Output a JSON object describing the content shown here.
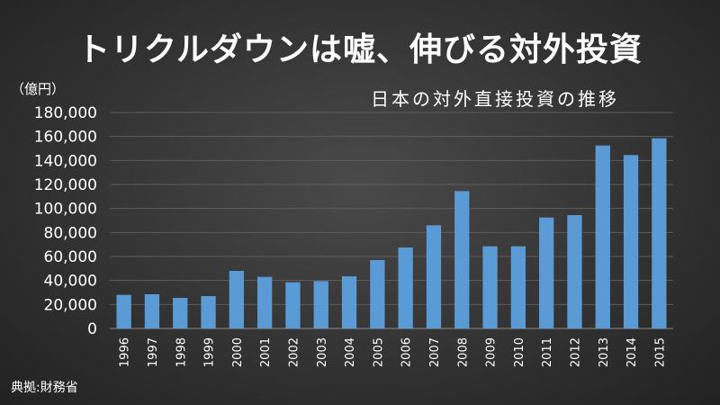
{
  "title": "トリクルダウンは嘘、伸びる対外投資",
  "unit_label": "（億円）",
  "source_text": "典拠:財務省",
  "chart_data": {
    "type": "bar",
    "title": "日本の対外直接投資の推移",
    "ylabel": "（億円）",
    "xlabel": "",
    "ylim": [
      0,
      180000
    ],
    "yticks": [
      0,
      20000,
      40000,
      60000,
      80000,
      100000,
      120000,
      140000,
      160000,
      180000
    ],
    "ytick_labels": [
      "0",
      "20,000",
      "40,000",
      "60,000",
      "80,000",
      "100,000",
      "120,000",
      "140,000",
      "160,000",
      "180,000"
    ],
    "grid": true,
    "categories": [
      "1996",
      "1997",
      "1998",
      "1999",
      "2000",
      "2001",
      "2002",
      "2003",
      "2004",
      "2005",
      "2006",
      "2007",
      "2008",
      "2009",
      "2010",
      "2011",
      "2012",
      "2013",
      "2014",
      "2015"
    ],
    "values": [
      28000,
      28500,
      25500,
      27000,
      48000,
      43000,
      38500,
      39500,
      43500,
      57000,
      67500,
      86000,
      114500,
      68500,
      68500,
      92500,
      94500,
      152500,
      144500,
      158500
    ],
    "bar_color": "#5b9bd5"
  }
}
